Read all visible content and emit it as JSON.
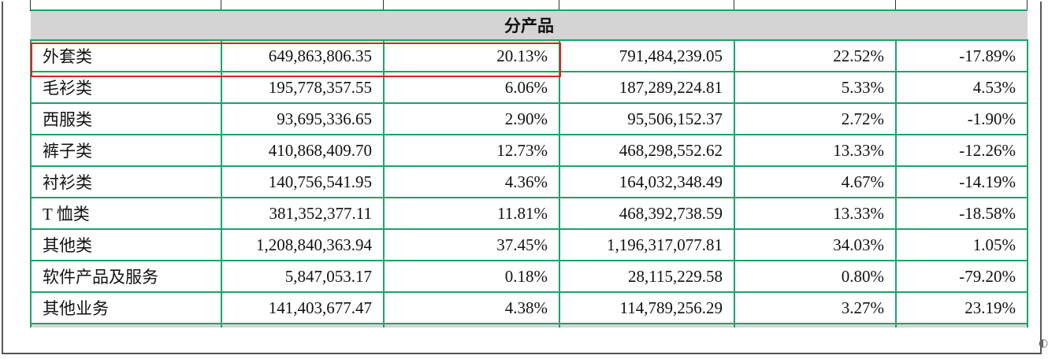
{
  "section_header": "分产品",
  "rows": [
    {
      "name": "外套类",
      "c1": "649,863,806.35",
      "c2": "20.13%",
      "c3": "791,484,239.05",
      "c4": "22.52%",
      "c5": "-17.89%",
      "highlighted": true
    },
    {
      "name": "毛衫类",
      "c1": "195,778,357.55",
      "c2": "6.06%",
      "c3": "187,289,224.81",
      "c4": "5.33%",
      "c5": "4.53%"
    },
    {
      "name": "西服类",
      "c1": "93,695,336.65",
      "c2": "2.90%",
      "c3": "95,506,152.37",
      "c4": "2.72%",
      "c5": "-1.90%"
    },
    {
      "name": "裤子类",
      "c1": "410,868,409.70",
      "c2": "12.73%",
      "c3": "468,298,552.62",
      "c4": "13.33%",
      "c5": "-12.26%"
    },
    {
      "name": "衬衫类",
      "c1": "140,756,541.95",
      "c2": "4.36%",
      "c3": "164,032,348.49",
      "c4": "4.67%",
      "c5": "-14.19%"
    },
    {
      "name": "T 恤类",
      "c1": "381,352,377.11",
      "c2": "11.81%",
      "c3": "468,392,738.59",
      "c4": "13.33%",
      "c5": "-18.58%"
    },
    {
      "name": "其他类",
      "c1": "1,208,840,363.94",
      "c2": "37.45%",
      "c3": "1,196,317,077.81",
      "c4": "34.03%",
      "c5": "1.05%"
    },
    {
      "name": "软件产品及服务",
      "c1": "5,847,053.17",
      "c2": "0.18%",
      "c3": "28,115,229.58",
      "c4": "0.80%",
      "c5": "-79.20%"
    },
    {
      "name": "其他业务",
      "c1": "141,403,677.47",
      "c2": "4.38%",
      "c3": "114,789,256.29",
      "c4": "3.27%",
      "c5": "23.19%"
    }
  ],
  "colors": {
    "grid": "#1aa36a",
    "header_bg": "#d4d4d4",
    "highlight": "#e02020"
  }
}
